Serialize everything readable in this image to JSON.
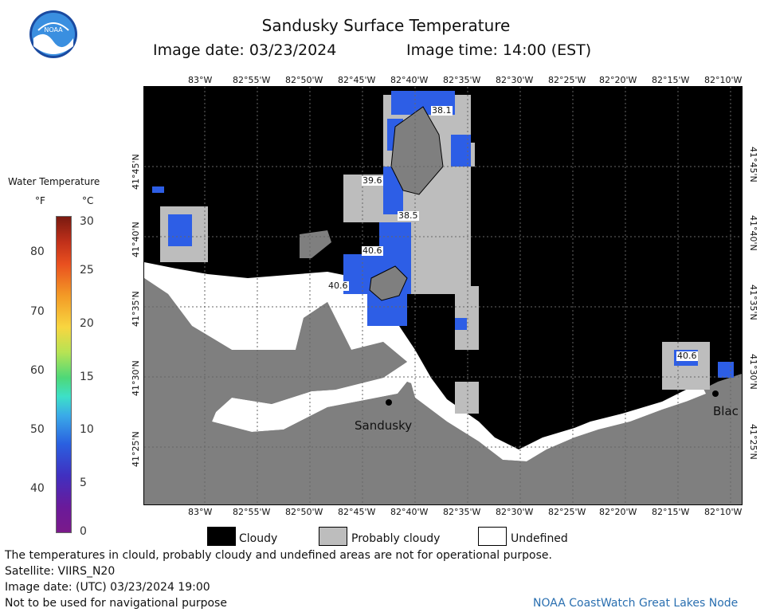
{
  "title": "Sandusky Surface Temperature",
  "image_date": "Image date: 03/23/2024",
  "image_time": "Image time: 14:00 (EST)",
  "legend": {
    "title": "Water Temperature",
    "unit_f": "°F",
    "unit_c": "°C",
    "f_ticks": [
      "80",
      "70",
      "60",
      "50",
      "40"
    ],
    "c_ticks": [
      "30",
      "25",
      "20",
      "15",
      "10",
      "5",
      "0"
    ]
  },
  "lon_labels": [
    "83°W",
    "82°55'W",
    "82°50'W",
    "82°45'W",
    "82°40'W",
    "82°35'W",
    "82°30'W",
    "82°25'W",
    "82°20'W",
    "82°15'W",
    "82°10'W"
  ],
  "lat_labels": [
    "41°45'N",
    "41°40'N",
    "41°35'N",
    "41°30'N",
    "41°25'N"
  ],
  "temp_labels": [
    "38.1",
    "39.6",
    "38.5",
    "40.6",
    "40.6",
    "40.6"
  ],
  "place_labels": {
    "sandusky": "Sandusky",
    "blac": "Blac"
  },
  "key": {
    "cloudy": "Cloudy",
    "probably_cloudy": "Probably cloudy",
    "undefined": "Undefined"
  },
  "footer": {
    "note": "The temperatures in clould, probably cloudy and undefined areas are not for operational purpose.",
    "satellite": "Satellite: VIIRS_N20",
    "utc_date": "Image date: (UTC) 03/23/2024  19:00",
    "nav": "Not to be used for navigational purpose",
    "node": "NOAA CoastWatch Great Lakes Node"
  },
  "colors": {
    "cloudy": "#000000",
    "probably_cloudy": "#bdbdbd",
    "undefined": "#ffffff",
    "land": "#7f7f7f",
    "water_blue": "#2d5ee6"
  }
}
